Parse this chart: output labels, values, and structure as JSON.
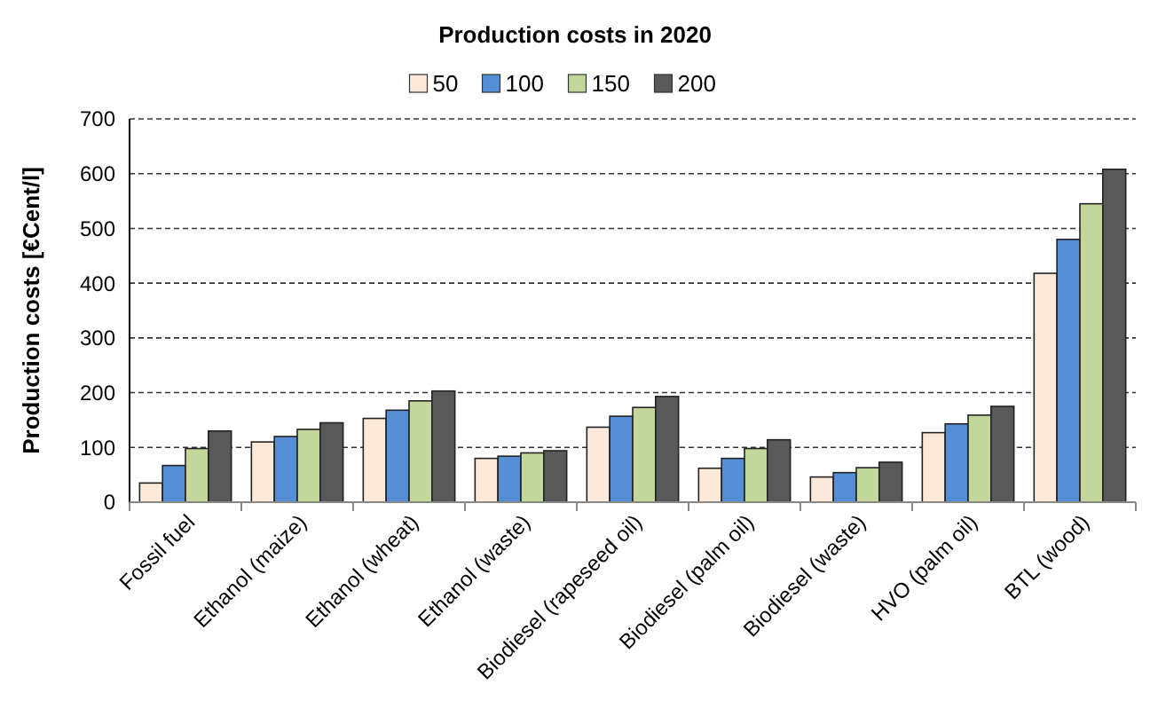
{
  "chart_data": {
    "type": "bar",
    "title": "Production costs in 2020",
    "ylabel": "Production costs [€Cent/l]",
    "categories": [
      "Fossil fuel",
      "Ethanol (maize)",
      "Ethanol (wheat)",
      "Ethanol (waste)",
      "Biodiesel (rapeseed oil)",
      "Biodiesel (palm oil)",
      "Biodiesel (waste)",
      "HVO (palm oil)",
      "BTL (wood)"
    ],
    "series": [
      {
        "name": "50",
        "color": "#fde9d9",
        "values": [
          35,
          110,
          153,
          80,
          137,
          62,
          46,
          127,
          418
        ]
      },
      {
        "name": "100",
        "color": "#558ed5",
        "values": [
          67,
          120,
          168,
          84,
          157,
          80,
          54,
          143,
          480
        ]
      },
      {
        "name": "150",
        "color": "#c3d69b",
        "values": [
          98,
          133,
          185,
          90,
          173,
          98,
          63,
          159,
          545
        ]
      },
      {
        "name": "200",
        "color": "#595959",
        "values": [
          130,
          145,
          203,
          94,
          193,
          114,
          73,
          175,
          608
        ]
      }
    ],
    "ylim": [
      0,
      700
    ],
    "yticks": [
      0,
      100,
      200,
      300,
      400,
      500,
      600,
      700
    ],
    "grid": "y",
    "legend": "top"
  }
}
